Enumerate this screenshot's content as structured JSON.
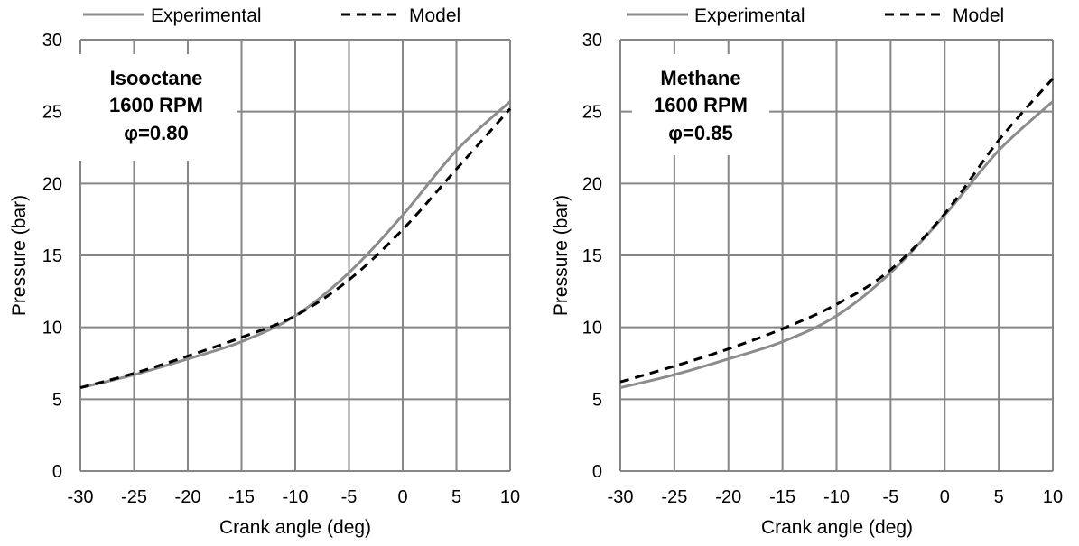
{
  "colors": {
    "experimental": "#8c8c8c",
    "model": "#000000",
    "grid": "#868686"
  },
  "chart_data": [
    {
      "type": "line",
      "xlabel": "Crank angle (deg)",
      "ylabel": "Pressure (bar)",
      "xlim": [
        -30,
        10
      ],
      "ylim": [
        0,
        30
      ],
      "xticks": [
        "-30",
        "-25",
        "-20",
        "-15",
        "-10",
        "-5",
        "0",
        "5",
        "10"
      ],
      "yticks": [
        "0",
        "5",
        "10",
        "15",
        "20",
        "25",
        "30"
      ],
      "grid": true,
      "legend_position": "top",
      "annotation": [
        "Isooctane",
        "1600 RPM",
        "φ=0.80"
      ],
      "series": [
        {
          "name": "Experimental",
          "style": "solid",
          "x": [
            -30,
            -25,
            -20,
            -15,
            -10,
            -5,
            0,
            5,
            10
          ],
          "y": [
            5.8,
            6.7,
            7.8,
            9.0,
            10.8,
            13.8,
            17.8,
            22.3,
            25.7
          ]
        },
        {
          "name": "Model",
          "style": "dashed",
          "x": [
            -30,
            -25,
            -20,
            -15,
            -10,
            -5,
            0,
            5,
            10
          ],
          "y": [
            5.8,
            6.8,
            8.0,
            9.3,
            10.8,
            13.3,
            16.8,
            21.0,
            25.2
          ]
        }
      ]
    },
    {
      "type": "line",
      "xlabel": "Crank angle (deg)",
      "ylabel": "Pressure (bar)",
      "xlim": [
        -30,
        10
      ],
      "ylim": [
        0,
        30
      ],
      "xticks": [
        "-30",
        "-25",
        "-20",
        "-15",
        "-10",
        "-5",
        "0",
        "5",
        "10"
      ],
      "yticks": [
        "0",
        "5",
        "10",
        "15",
        "20",
        "25",
        "30"
      ],
      "grid": true,
      "legend_position": "top",
      "annotation": [
        "Methane",
        "1600 RPM",
        "φ=0.85"
      ],
      "series": [
        {
          "name": "Experimental",
          "style": "solid",
          "x": [
            -30,
            -25,
            -20,
            -15,
            -10,
            -5,
            0,
            5,
            10
          ],
          "y": [
            5.8,
            6.7,
            7.8,
            9.0,
            10.8,
            13.8,
            17.8,
            22.3,
            25.7
          ]
        },
        {
          "name": "Model",
          "style": "dashed",
          "x": [
            -30,
            -25,
            -20,
            -15,
            -10,
            -5,
            0,
            5,
            10
          ],
          "y": [
            6.2,
            7.3,
            8.5,
            9.9,
            11.6,
            14.0,
            17.9,
            23.0,
            27.3
          ]
        }
      ]
    }
  ]
}
